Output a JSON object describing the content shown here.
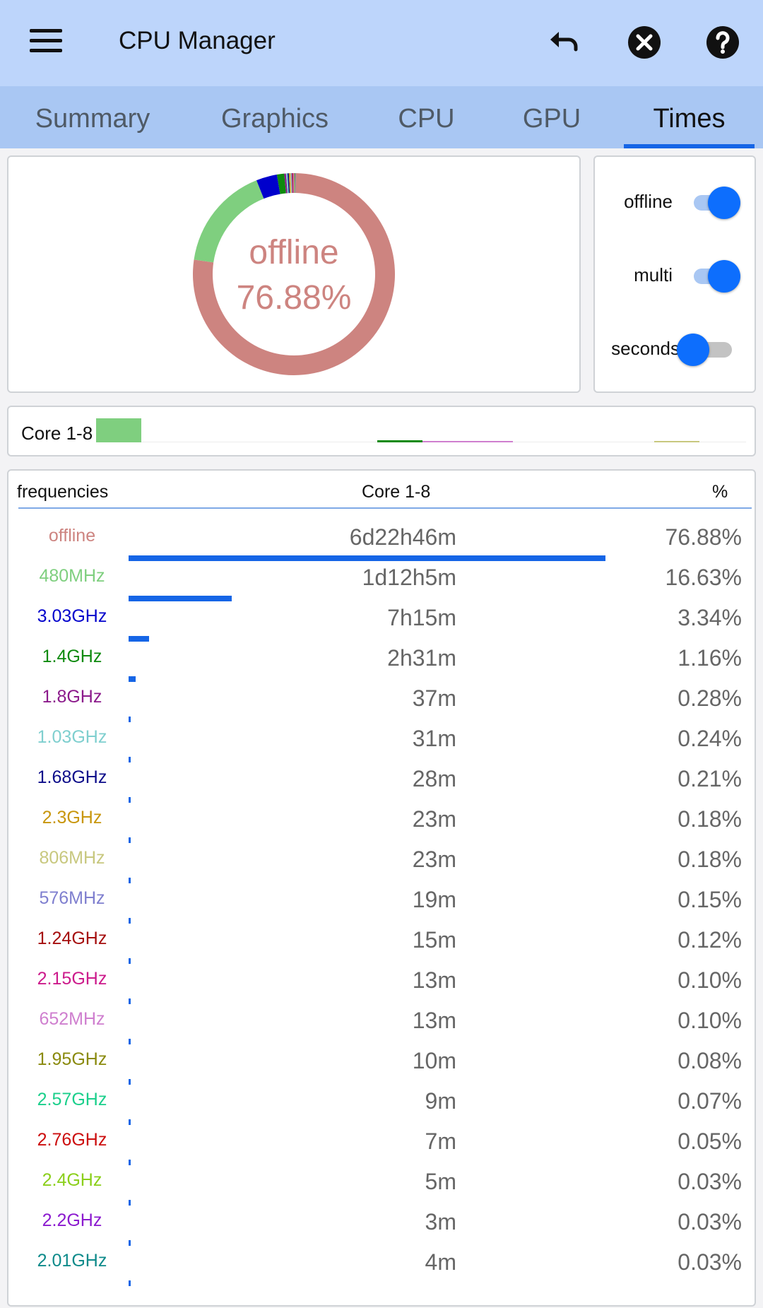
{
  "app": {
    "title": "CPU Manager"
  },
  "icons": {
    "menu": "menu-icon",
    "undo": "undo-icon",
    "close": "close-circle-icon",
    "help": "help-circle-icon"
  },
  "tabs": [
    {
      "label": "Summary",
      "active": false
    },
    {
      "label": "Graphics",
      "active": false
    },
    {
      "label": "CPU",
      "active": false
    },
    {
      "label": "GPU",
      "active": false
    },
    {
      "label": "Times",
      "active": true
    }
  ],
  "donut": {
    "label": "offline",
    "value": "76.88%",
    "color": "#cd8480"
  },
  "switches": [
    {
      "label": "offline",
      "on": true
    },
    {
      "label": "multi",
      "on": true
    },
    {
      "label": "seconds",
      "on": false
    }
  ],
  "core_bar": {
    "label": "Core 1-8"
  },
  "table": {
    "headers": {
      "freq": "frequencies",
      "core": "Core 1-8",
      "pct": "%"
    },
    "rows": [
      {
        "freq": "offline",
        "time": "6d22h46m",
        "pct": "76.88%",
        "value": 76.88,
        "color": "#cd8480"
      },
      {
        "freq": "480MHz",
        "time": "1d12h5m",
        "pct": "16.63%",
        "value": 16.63,
        "color": "#7fcf7f"
      },
      {
        "freq": "3.03GHz",
        "time": "7h15m",
        "pct": "3.34%",
        "value": 3.34,
        "color": "#0000cc"
      },
      {
        "freq": "1.4GHz",
        "time": "2h31m",
        "pct": "1.16%",
        "value": 1.16,
        "color": "#0e8a0e"
      },
      {
        "freq": "1.8GHz",
        "time": "37m",
        "pct": "0.28%",
        "value": 0.28,
        "color": "#8b1a8b"
      },
      {
        "freq": "1.03GHz",
        "time": "31m",
        "pct": "0.24%",
        "value": 0.24,
        "color": "#7fcfcf"
      },
      {
        "freq": "1.68GHz",
        "time": "28m",
        "pct": "0.21%",
        "value": 0.21,
        "color": "#0d0d8a"
      },
      {
        "freq": "2.3GHz",
        "time": "23m",
        "pct": "0.18%",
        "value": 0.18,
        "color": "#c8960c"
      },
      {
        "freq": "806MHz",
        "time": "23m",
        "pct": "0.18%",
        "value": 0.18,
        "color": "#c8c87f"
      },
      {
        "freq": "576MHz",
        "time": "19m",
        "pct": "0.15%",
        "value": 0.15,
        "color": "#7f7fcf"
      },
      {
        "freq": "1.24GHz",
        "time": "15m",
        "pct": "0.12%",
        "value": 0.12,
        "color": "#a50e0e"
      },
      {
        "freq": "2.15GHz",
        "time": "13m",
        "pct": "0.10%",
        "value": 0.1,
        "color": "#cc1a8b"
      },
      {
        "freq": "652MHz",
        "time": "13m",
        "pct": "0.10%",
        "value": 0.1,
        "color": "#cf7fcf"
      },
      {
        "freq": "1.95GHz",
        "time": "10m",
        "pct": "0.08%",
        "value": 0.08,
        "color": "#8a8a0d"
      },
      {
        "freq": "2.57GHz",
        "time": "9m",
        "pct": "0.07%",
        "value": 0.07,
        "color": "#1acf8b"
      },
      {
        "freq": "2.76GHz",
        "time": "7m",
        "pct": "0.05%",
        "value": 0.05,
        "color": "#cc0d0d"
      },
      {
        "freq": "2.4GHz",
        "time": "5m",
        "pct": "0.03%",
        "value": 0.03,
        "color": "#8bcf1a"
      },
      {
        "freq": "2.2GHz",
        "time": "3m",
        "pct": "0.03%",
        "value": 0.03,
        "color": "#8b1acf"
      },
      {
        "freq": "2.01GHz",
        "time": "4m",
        "pct": "0.03%",
        "value": 0.03,
        "color": "#0d8a8a"
      }
    ]
  }
}
